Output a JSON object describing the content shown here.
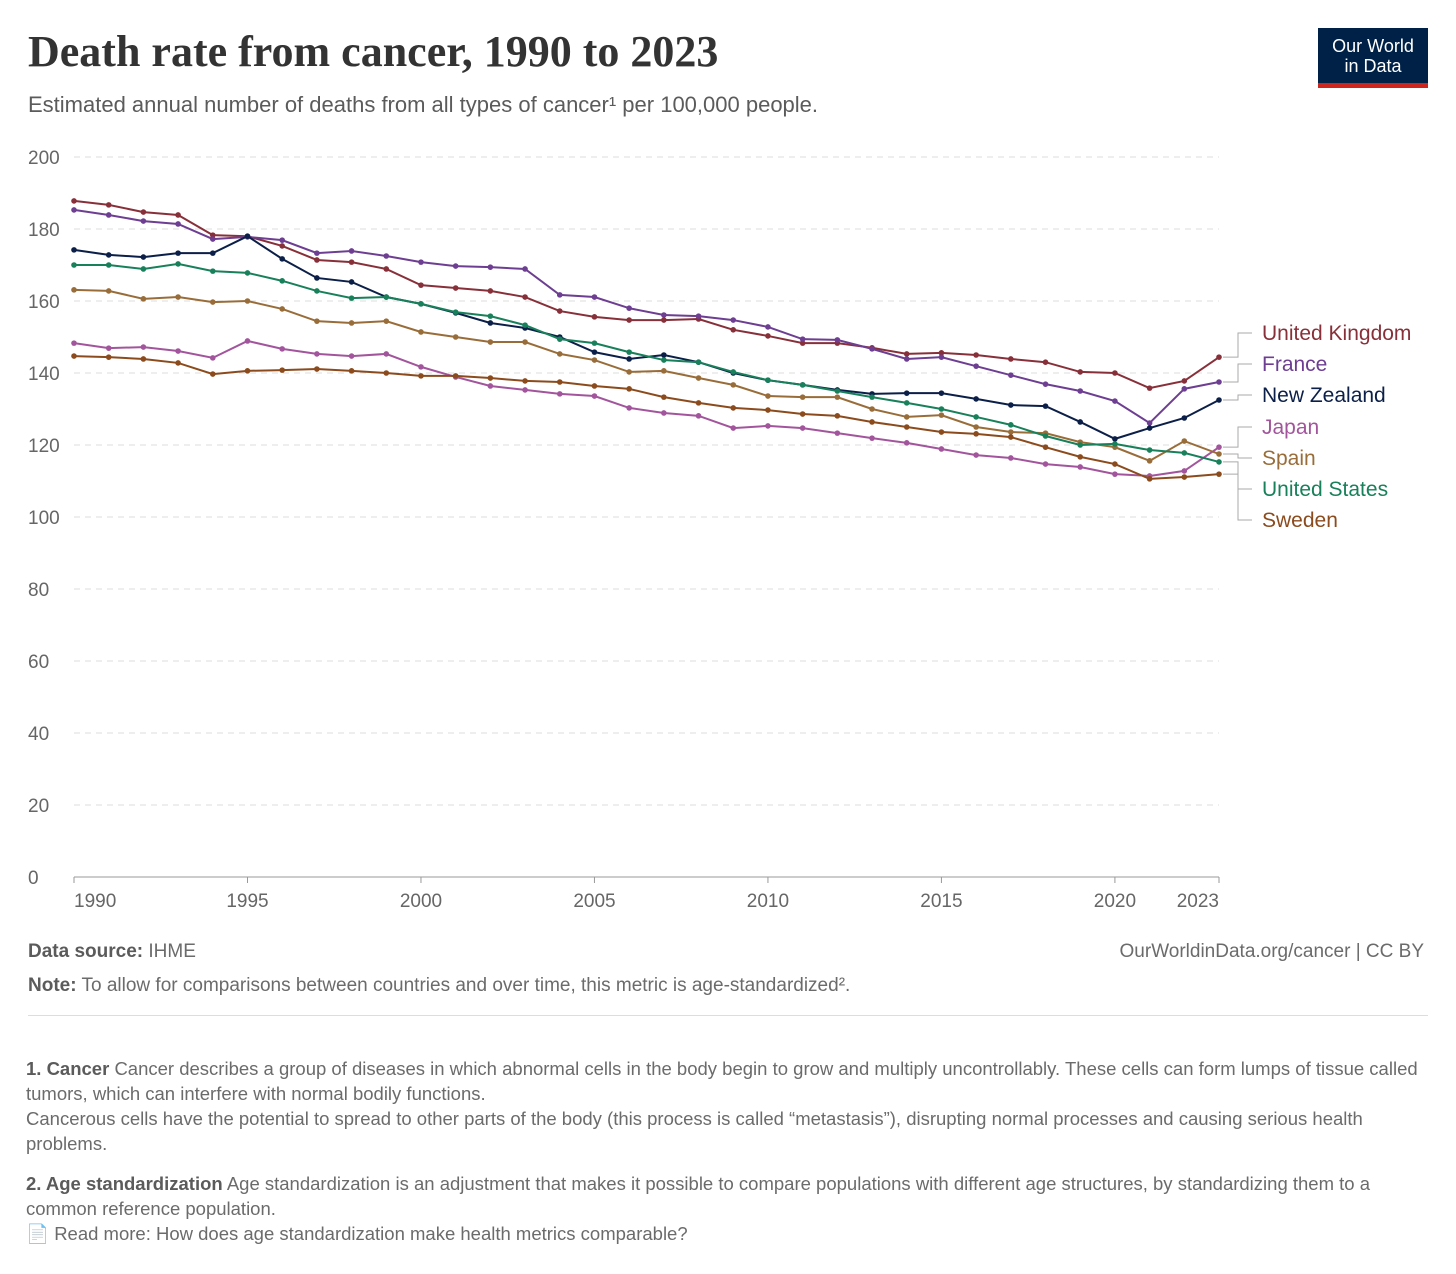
{
  "header": {
    "title": "Death rate from cancer, 1990 to 2023",
    "subtitle": "Estimated annual number of deaths from all types of cancer¹ per 100,000 people.",
    "logo": "Our World in Data"
  },
  "chart_data": {
    "type": "line",
    "title": "Death rate from cancer, 1990 to 2023",
    "ylim": [
      0,
      200
    ],
    "yticks": [
      0,
      20,
      40,
      60,
      80,
      100,
      120,
      140,
      160,
      180,
      200
    ],
    "xticks": [
      1990,
      1995,
      2000,
      2005,
      2010,
      2015,
      2020,
      2023
    ],
    "grid": "horizontal dashed",
    "legend": "right, end labels",
    "x": [
      1990,
      1991,
      1992,
      1993,
      1994,
      1995,
      1996,
      1997,
      1998,
      1999,
      2000,
      2001,
      2002,
      2003,
      2004,
      2005,
      2006,
      2007,
      2008,
      2009,
      2010,
      2011,
      2012,
      2013,
      2014,
      2015,
      2016,
      2017,
      2018,
      2019,
      2020,
      2021,
      2022,
      2023
    ],
    "series": [
      {
        "name": "United Kingdom",
        "color": "#883039",
        "values": [
          187.8,
          186.7,
          184.7,
          183.9,
          178.3,
          178,
          175.3,
          171.4,
          170.8,
          168.9,
          164.4,
          163.6,
          162.8,
          161.1,
          157.2,
          155.6,
          154.7,
          154.7,
          155,
          152,
          150.3,
          148.3,
          148.3,
          147,
          145.3,
          145.6,
          145,
          143.9,
          143,
          140.3,
          140,
          135.8,
          137.8,
          144.4
        ]
      },
      {
        "name": "France",
        "color": "#6d3e91",
        "values": [
          185.3,
          183.9,
          182.2,
          181.4,
          177.2,
          177.8,
          176.9,
          173.3,
          173.9,
          172.5,
          170.8,
          169.7,
          169.4,
          168.9,
          161.7,
          161.1,
          158,
          156.1,
          155.8,
          154.7,
          152.8,
          149.4,
          149.2,
          146.7,
          143.9,
          144.4,
          141.9,
          139.4,
          136.9,
          135,
          132.2,
          126.1,
          135.6,
          137.5
        ]
      },
      {
        "name": "New Zealand",
        "color": "#0b1f48",
        "values": [
          174.2,
          172.8,
          172.2,
          173.3,
          173.3,
          178,
          171.7,
          166.4,
          165.3,
          161.1,
          159.2,
          156.7,
          153.9,
          152.5,
          150,
          145.8,
          143.9,
          145,
          143,
          140,
          138,
          136.7,
          135.3,
          134.2,
          134.4,
          134.4,
          132.8,
          131.1,
          130.8,
          126.4,
          121.7,
          124.7,
          127.5,
          132.5
        ]
      },
      {
        "name": "Japan",
        "color": "#a2559c",
        "values": [
          148.3,
          146.9,
          147.2,
          146.1,
          144.2,
          148.9,
          146.7,
          145.3,
          144.7,
          145.3,
          141.7,
          138.9,
          136.4,
          135.3,
          134.2,
          133.6,
          130.3,
          128.9,
          128.1,
          124.7,
          125.3,
          124.7,
          123.3,
          121.9,
          120.6,
          118.9,
          117.2,
          116.4,
          114.7,
          113.9,
          111.9,
          111.4,
          112.8,
          119.4
        ]
      },
      {
        "name": "Spain",
        "color": "#996d39",
        "values": [
          163.1,
          162.8,
          160.6,
          161.1,
          159.7,
          160,
          157.8,
          154.4,
          153.9,
          154.4,
          151.4,
          150,
          148.6,
          148.6,
          145.3,
          143.6,
          140.3,
          140.6,
          138.6,
          136.7,
          133.6,
          133.3,
          133.3,
          130,
          127.8,
          128.3,
          125,
          123.6,
          123.3,
          120.8,
          119.4,
          115.6,
          121.1,
          117.5
        ]
      },
      {
        "name": "United States",
        "color": "#18805a",
        "values": [
          170,
          170,
          168.9,
          170.3,
          168.3,
          167.8,
          165.6,
          162.8,
          160.8,
          161.1,
          159.2,
          156.9,
          155.8,
          153.3,
          149.4,
          148.3,
          145.8,
          143.6,
          143,
          140.3,
          138,
          136.7,
          135,
          133.3,
          131.7,
          130,
          127.8,
          125.6,
          122.5,
          120,
          120.3,
          118.6,
          117.8,
          115.3
        ]
      },
      {
        "name": "Sweden",
        "color": "#8c4b1c",
        "values": [
          144.7,
          144.4,
          143.9,
          142.8,
          139.7,
          140.6,
          140.8,
          141.1,
          140.6,
          140,
          139.2,
          139.2,
          138.6,
          137.8,
          137.5,
          136.4,
          135.6,
          133.3,
          131.7,
          130.3,
          129.7,
          128.6,
          128.1,
          126.4,
          125,
          123.6,
          123.1,
          122.2,
          119.4,
          116.7,
          114.7,
          110.6,
          111.1,
          111.9
        ]
      }
    ]
  },
  "footer": {
    "source_label": "Data source:",
    "source": "IHME",
    "url": "OurWorldinData.org/cancer | CC BY",
    "note_label": "Note:",
    "note": "To allow for comparisons between countries and over time, this metric is age-standardized²."
  },
  "notes": [
    {
      "label": "1. Cancer",
      "text": "Cancer describes a group of diseases in which abnormal cells in the body begin to grow and multiply uncontrollably. These cells can form lumps of tissue called tumors, which can interfere with normal bodily functions.",
      "text2": "Cancerous cells have the potential to spread to other parts of the body (this process is called “metastasis”), disrupting normal processes and causing serious health problems."
    },
    {
      "label": "2. Age standardization",
      "text": "Age standardization is an adjustment that makes it possible to compare populations with different age structures, by standardizing them to a common reference population.",
      "read_more": "Read more:",
      "link": "How does age standardization make health metrics comparable?",
      "icon": "document-icon"
    }
  ]
}
